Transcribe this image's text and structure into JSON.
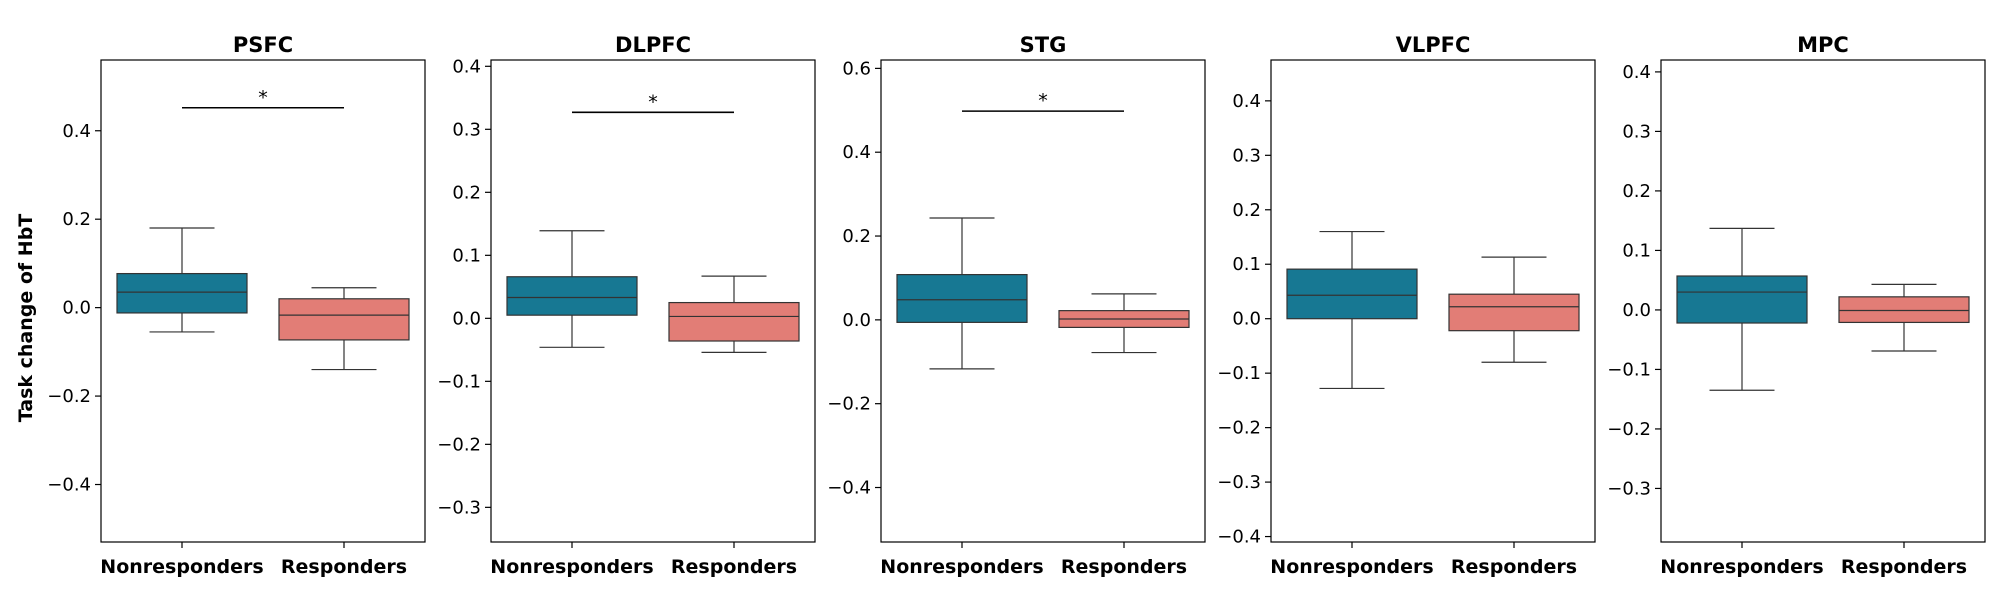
{
  "chart_data": {
    "type": "boxplot",
    "ylabel": "Task change of HbT",
    "categories": [
      "Nonresponders",
      "Responders"
    ],
    "colors": {
      "Nonresponders": "#177893",
      "Responders": "#e27d76"
    },
    "panels": [
      {
        "title": "PSFC",
        "ylim": [
          -0.53,
          0.56
        ],
        "ticks": [
          -0.4,
          -0.2,
          0.0,
          0.2,
          0.4
        ],
        "tick_labels": [
          "−0.4",
          "−0.2",
          "0.0",
          "0.2",
          "0.4"
        ],
        "boxes": [
          {
            "group": "Nonresponders",
            "whisker_low": -0.055,
            "q1": -0.012,
            "median": 0.035,
            "q3": 0.077,
            "whisker_high": 0.18
          },
          {
            "group": "Responders",
            "whisker_low": -0.14,
            "q1": -0.073,
            "median": -0.017,
            "q3": 0.02,
            "whisker_high": 0.045
          }
        ],
        "significance": {
          "y": 0.452,
          "label": "*"
        }
      },
      {
        "title": "DLPFC",
        "ylim": [
          -0.355,
          0.41
        ],
        "ticks": [
          -0.3,
          -0.2,
          -0.1,
          0.0,
          0.1,
          0.2,
          0.3,
          0.4
        ],
        "tick_labels": [
          "−0.3",
          "−0.2",
          "−0.1",
          "0.0",
          "0.1",
          "0.2",
          "0.3",
          "0.4"
        ],
        "boxes": [
          {
            "group": "Nonresponders",
            "whisker_low": -0.046,
            "q1": 0.005,
            "median": 0.033,
            "q3": 0.066,
            "whisker_high": 0.139
          },
          {
            "group": "Responders",
            "whisker_low": -0.054,
            "q1": -0.036,
            "median": 0.003,
            "q3": 0.025,
            "whisker_high": 0.067
          }
        ],
        "significance": {
          "y": 0.327,
          "label": "*"
        }
      },
      {
        "title": "STG",
        "ylim": [
          -0.53,
          0.62
        ],
        "ticks": [
          -0.4,
          -0.2,
          0.0,
          0.2,
          0.4,
          0.6
        ],
        "tick_labels": [
          "−0.4",
          "−0.2",
          "0.0",
          "0.2",
          "0.4",
          "0.6"
        ],
        "boxes": [
          {
            "group": "Nonresponders",
            "whisker_low": -0.117,
            "q1": -0.006,
            "median": 0.048,
            "q3": 0.108,
            "whisker_high": 0.243
          },
          {
            "group": "Responders",
            "whisker_low": -0.078,
            "q1": -0.018,
            "median": 0.002,
            "q3": 0.022,
            "whisker_high": 0.062
          }
        ],
        "significance": {
          "y": 0.498,
          "label": "*"
        }
      },
      {
        "title": "VLPFC",
        "ylim": [
          -0.41,
          0.475
        ],
        "ticks": [
          -0.4,
          -0.3,
          -0.2,
          -0.1,
          0.0,
          0.1,
          0.2,
          0.3,
          0.4
        ],
        "tick_labels": [
          "−0.4",
          "−0.3",
          "−0.2",
          "−0.1",
          "0.0",
          "0.1",
          "0.2",
          "0.3",
          "0.4"
        ],
        "boxes": [
          {
            "group": "Nonresponders",
            "whisker_low": -0.128,
            "q1": 0.0,
            "median": 0.043,
            "q3": 0.091,
            "whisker_high": 0.16
          },
          {
            "group": "Responders",
            "whisker_low": -0.08,
            "q1": -0.022,
            "median": 0.022,
            "q3": 0.045,
            "whisker_high": 0.113
          }
        ],
        "significance": null
      },
      {
        "title": "MPC",
        "ylim": [
          -0.39,
          0.42
        ],
        "ticks": [
          -0.3,
          -0.2,
          -0.1,
          0.0,
          0.1,
          0.2,
          0.3,
          0.4
        ],
        "tick_labels": [
          "−0.3",
          "−0.2",
          "−0.1",
          "0.0",
          "0.1",
          "0.2",
          "0.3",
          "0.4"
        ],
        "boxes": [
          {
            "group": "Nonresponders",
            "whisker_low": -0.135,
            "q1": -0.022,
            "median": 0.03,
            "q3": 0.057,
            "whisker_high": 0.137
          },
          {
            "group": "Responders",
            "whisker_low": -0.069,
            "q1": -0.021,
            "median": -0.001,
            "q3": 0.022,
            "whisker_high": 0.043
          }
        ],
        "significance": null
      }
    ]
  }
}
